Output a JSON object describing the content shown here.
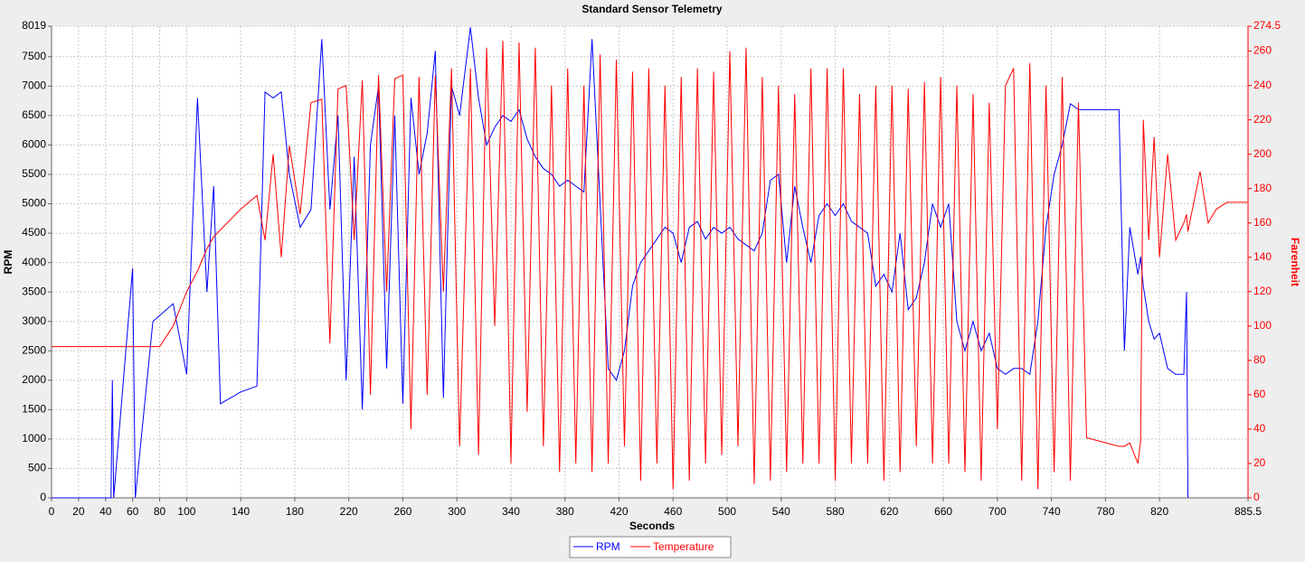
{
  "chart_data": {
    "type": "line",
    "title": "Standard Sensor Telemetry",
    "xlabel": "Seconds",
    "ylabel": "RPM",
    "y2label": "Farenheit",
    "xlim": [
      0,
      885.5
    ],
    "xticks": [
      0,
      20,
      40,
      60,
      80,
      100,
      140,
      180,
      220,
      260,
      300,
      340,
      380,
      420,
      460,
      500,
      540,
      580,
      620,
      660,
      700,
      740,
      780,
      820,
      885.5
    ],
    "ylim": [
      0,
      8019
    ],
    "yticks": [
      0,
      500,
      1000,
      1500,
      2000,
      2500,
      3000,
      3500,
      4000,
      4500,
      5000,
      5500,
      6000,
      6500,
      7000,
      7500,
      8019
    ],
    "y2lim": [
      0,
      274.5
    ],
    "y2ticks": [
      0,
      20,
      40,
      60,
      80,
      100,
      120,
      140,
      160,
      180,
      200,
      220,
      240,
      260,
      274.5
    ],
    "grid": true,
    "legend": "bottom",
    "x": [
      0,
      44,
      45,
      46,
      60,
      62,
      75,
      80,
      90,
      100,
      108,
      115,
      120,
      125,
      140,
      152,
      158,
      164,
      170,
      176,
      184,
      192,
      200,
      206,
      212,
      218,
      224,
      230,
      236,
      242,
      248,
      254,
      260,
      266,
      272,
      278,
      284,
      290,
      296,
      302,
      310,
      316,
      322,
      328,
      334,
      340,
      346,
      352,
      358,
      364,
      370,
      376,
      382,
      388,
      394,
      400,
      406,
      412,
      418,
      424,
      430,
      436,
      442,
      448,
      454,
      460,
      466,
      472,
      478,
      484,
      490,
      496,
      502,
      508,
      514,
      520,
      526,
      532,
      538,
      544,
      550,
      556,
      562,
      568,
      574,
      580,
      586,
      592,
      598,
      604,
      610,
      616,
      622,
      628,
      634,
      640,
      646,
      652,
      658,
      664,
      670,
      676,
      682,
      688,
      694,
      700,
      706,
      712,
      718,
      724,
      730,
      736,
      742,
      748,
      754,
      760,
      766,
      790,
      794,
      798,
      804,
      806,
      808,
      812,
      816,
      820,
      826,
      832,
      838,
      840,
      841,
      850,
      856,
      862,
      870,
      885
    ],
    "series": [
      {
        "name": "RPM",
        "color": "#0000ff",
        "values": [
          0,
          0,
          2000,
          0,
          3900,
          0,
          3000,
          3100,
          3300,
          2100,
          6800,
          3500,
          5300,
          1600,
          1800,
          1900,
          6900,
          6800,
          6900,
          5500,
          4600,
          4900,
          7800,
          4900,
          6500,
          2000,
          5800,
          1500,
          6000,
          7000,
          2200,
          6500,
          1600,
          6800,
          5500,
          6200,
          7600,
          1700,
          7000,
          6500,
          8000,
          6800,
          6000,
          6300,
          6500,
          6400,
          6600,
          6100,
          5800,
          5600,
          5500,
          5300,
          5400,
          5300,
          5200,
          7800,
          5000,
          2200,
          2000,
          2500,
          3600,
          4000,
          4200,
          4400,
          4600,
          4500,
          4000,
          4600,
          4700,
          4400,
          4600,
          4500,
          4600,
          4400,
          4300,
          4200,
          4500,
          5400,
          5500,
          4000,
          5300,
          4600,
          4000,
          4800,
          5000,
          4800,
          5000,
          4700,
          4600,
          4500,
          3600,
          3800,
          3500,
          4500,
          3200,
          3400,
          4000,
          5000,
          4600,
          5000,
          3000,
          2500,
          3000,
          2500,
          2800,
          2200,
          2100,
          2200,
          2200,
          2100,
          3000,
          4600,
          5500,
          6000,
          6700,
          6600,
          6600,
          6600,
          2500,
          4600,
          3800,
          4100,
          3600,
          3000,
          2700,
          2800,
          2200,
          2100,
          2100,
          3500,
          0,
          null,
          null,
          null,
          null,
          null
        ]
      },
      {
        "name": "Temperature",
        "color": "#ff0000",
        "axis": "y2",
        "values": [
          88,
          88,
          88,
          88,
          88,
          88,
          88,
          88,
          100,
          120,
          132,
          145,
          152,
          156,
          168,
          176,
          150,
          200,
          140,
          205,
          165,
          230,
          232,
          90,
          238,
          240,
          150,
          243,
          60,
          246,
          120,
          244,
          246,
          40,
          245,
          60,
          246,
          120,
          250,
          30,
          250,
          25,
          262,
          100,
          266,
          20,
          265,
          50,
          262,
          30,
          240,
          15,
          250,
          20,
          240,
          15,
          258,
          20,
          255,
          30,
          248,
          10,
          250,
          20,
          240,
          5,
          245,
          10,
          250,
          20,
          248,
          25,
          260,
          30,
          262,
          8,
          245,
          10,
          240,
          15,
          235,
          20,
          250,
          20,
          250,
          10,
          250,
          20,
          235,
          20,
          240,
          10,
          240,
          15,
          238,
          30,
          242,
          20,
          245,
          20,
          240,
          15,
          235,
          10,
          230,
          40,
          240,
          250,
          10,
          253,
          5,
          240,
          15,
          245,
          10,
          230,
          35,
          30,
          30,
          32,
          20,
          33,
          220,
          150,
          210,
          140,
          200,
          150,
          160,
          165,
          155,
          190,
          160,
          168,
          172,
          172
        ]
      }
    ]
  }
}
